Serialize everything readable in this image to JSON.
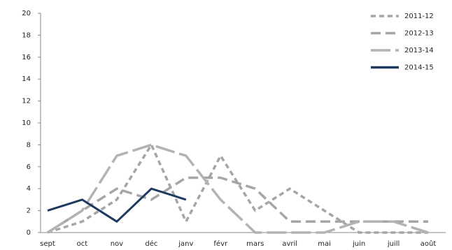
{
  "chart_data": {
    "type": "line",
    "categories": [
      "sept",
      "oct",
      "nov",
      "déc",
      "janv",
      "févr",
      "mars",
      "avril",
      "mai",
      "juin",
      "juill",
      "août"
    ],
    "series": [
      {
        "name": "2011-12",
        "color": "#a6a6a6",
        "dash": "7 5",
        "values": [
          0,
          1,
          3,
          8,
          1,
          7,
          2,
          4,
          2,
          0,
          0,
          0
        ]
      },
      {
        "name": "2012-13",
        "color": "#a6a6a6",
        "dash": "14 7",
        "values": [
          0,
          2,
          4,
          3,
          5,
          5,
          4,
          1,
          1,
          1,
          1,
          1
        ]
      },
      {
        "name": "2013-14",
        "color": "#b3b3b3",
        "dash": "28 7",
        "values": [
          0,
          2,
          7,
          8,
          7,
          3,
          0,
          0,
          0,
          1,
          1,
          0
        ]
      },
      {
        "name": "2014-15",
        "color": "#1f3a5f",
        "dash": "none",
        "values": [
          2,
          3,
          1,
          4,
          3,
          null,
          null,
          null,
          null,
          null,
          null,
          null
        ]
      }
    ],
    "ylim": [
      0,
      20
    ],
    "yticks": [
      0,
      2,
      4,
      6,
      8,
      10,
      12,
      14,
      16,
      18,
      20
    ],
    "legend": "top-right"
  }
}
